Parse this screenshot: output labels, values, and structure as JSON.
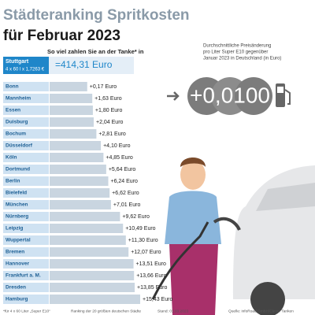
{
  "chart_data": {
    "type": "bar",
    "orientation": "horizontal",
    "title": "Städteranking Spritkosten",
    "title_line2": "für Februar 2023",
    "subtitle": "So viel zahlen Sie an der Tanke* in",
    "reference_city": "Stuttgart",
    "reference_formula": "4 x 60 l x 1,7263 €",
    "reference_total": "=414,31 Euro",
    "note_lines": [
      "Durchschnittliche Preisänderung",
      "pro Liter Super E10 gegenüber",
      "Januar 2023 in Deutschland (in Euro)"
    ],
    "price_change": "+0,0100",
    "categories": [
      "Bonn",
      "Mannheim",
      "Essen",
      "Duisburg",
      "Bochum",
      "Düsseldorf",
      "Köln",
      "Dortmund",
      "Berlin",
      "Bielefeld",
      "München",
      "Nürnberg",
      "Leipzig",
      "Wuppertal",
      "Bremen",
      "Hannover",
      "Frankfurt a. M.",
      "Dresden",
      "Hamburg"
    ],
    "values": [
      0.17,
      1.63,
      1.8,
      2.04,
      2.81,
      4.1,
      4.85,
      5.64,
      6.24,
      6.62,
      7.01,
      9.62,
      10.49,
      11.3,
      12.07,
      13.51,
      13.66,
      13.85,
      15.43
    ],
    "value_labels": [
      "+0,17 Euro",
      "+1,63 Euro",
      "+1,80 Euro",
      "+2,04 Euro",
      "+2,81 Euro",
      "+4,10 Euro",
      "+4,85 Euro",
      "+5,64 Euro",
      "+6,24 Euro",
      "+6,62 Euro",
      "+7,01 Euro",
      "+9,62 Euro",
      "+10,49 Euro",
      "+11,30 Euro",
      "+12,07 Euro",
      "+13,51 Euro",
      "+13,66 Euro",
      "+13,85 Euro",
      "+15,43 Euro"
    ],
    "color": "#c9d5e0",
    "footer": [
      "*für 4 x 60 Liter „Super E10“",
      "Ranking der 20 größten deutschen Städte",
      "Stand: 01.03.2023",
      "Quelle: infoRoad GmbH/Clever Tanken"
    ]
  }
}
